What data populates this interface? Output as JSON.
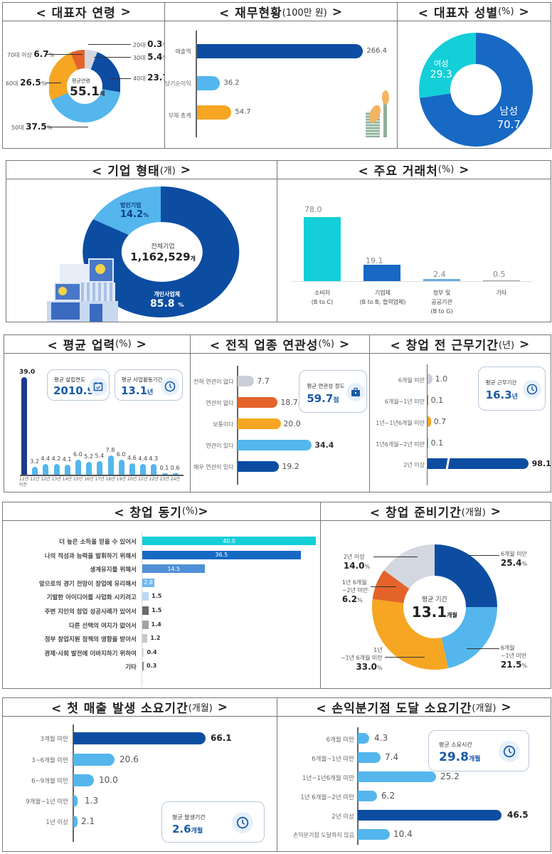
{
  "panels": {
    "age": {
      "title": "< 대표자 연령",
      "title_end": ">",
      "center_label": "평균연령",
      "center_value": "55.1",
      "center_unit": "세",
      "segments": [
        {
          "label": "20대",
          "value": "0.3",
          "unit": "%",
          "color": "#d7dbe3"
        },
        {
          "label": "30대",
          "value": "5.4",
          "unit": "%",
          "color": "#d3d7e0"
        },
        {
          "label": "40대",
          "value": "23.7",
          "unit": "%",
          "color": "#0c4da2"
        },
        {
          "label": "50대",
          "value": "37.5",
          "unit": "%",
          "color": "#54b6ec"
        },
        {
          "label": "60대",
          "value": "26.5",
          "unit": "%",
          "color": "#f6a623"
        },
        {
          "label": "70대 이상",
          "value": "6.7",
          "unit": "%",
          "color": "#e3632b"
        }
      ]
    },
    "finance": {
      "title": "< 재무현황",
      "unit": "(100만 원)",
      "title_end": ">",
      "bars": [
        {
          "label": "매출액",
          "value": "266.4",
          "color": "#0c4da2"
        },
        {
          "label": "당기순이익",
          "value": "36.2",
          "color": "#54b6ec"
        },
        {
          "label": "부채 총계",
          "value": "54.7",
          "color": "#f6a623"
        }
      ]
    },
    "gender": {
      "title": "< 대표자 성별",
      "unit": "(%)",
      "title_end": ">",
      "segments": [
        {
          "label": "여성",
          "value": "29.3",
          "color": "#14cfd8"
        },
        {
          "label": "남성",
          "value": "70.7",
          "color": "#1769c4"
        }
      ]
    },
    "company_type": {
      "title": "< 기업 형태",
      "unit": "(개)",
      "title_end": ">",
      "center_label": "전체기업",
      "center_value": "1,162,529",
      "center_unit": "개",
      "segments": [
        {
          "label": "법인기업",
          "value": "14.2",
          "unit": "%",
          "color": "#54b6ec"
        },
        {
          "label": "개인사업체",
          "value": "85.8",
          "unit": "%",
          "color": "#0c4da2"
        }
      ]
    },
    "customers": {
      "title": "< 주요 거래처",
      "unit": "(%)",
      "title_end": ">",
      "bars": [
        {
          "label1": "소비자",
          "label2": "(B to C)",
          "label3": "",
          "value": "78.0",
          "color": "#14cfd8"
        },
        {
          "label1": "기업체",
          "label2": "(B to B, 협력업체)",
          "label3": "",
          "value": "19.1",
          "color": "#1769c4"
        },
        {
          "label1": "정부 및",
          "label2": "공공기관",
          "label3": "(B to G)",
          "value": "2.4",
          "color": "#6aaee0"
        },
        {
          "label1": "기타",
          "label2": "",
          "label3": "",
          "value": "0.5",
          "color": "#9a9a9a"
        }
      ]
    },
    "business_years": {
      "title": "< 평균 업력",
      "unit": "(%)",
      "title_end": ">",
      "card1": {
        "label": "평균 설립연도",
        "value": "2010.9",
        "unit": ""
      },
      "card2": {
        "label": "평균 사업활동기간",
        "value": "13.1",
        "unit": "년"
      }
    },
    "relevance": {
      "title": "< 전직 업종 연관성",
      "unit": "(%)",
      "title_end": ">",
      "card": {
        "label": "평균 연관성 정도",
        "value": "59.7",
        "unit": "점"
      },
      "bars": [
        {
          "label": "전혀 연관이 없다",
          "value": "7.7",
          "color": "#c9ced8"
        },
        {
          "label": "연관이 없다",
          "value": "18.7",
          "color": "#e3632b"
        },
        {
          "label": "보통이다",
          "value": "20.0",
          "color": "#f6a623"
        },
        {
          "label": "연관이 있다",
          "value": "34.4",
          "color": "#54b6ec"
        },
        {
          "label": "매우 연관이 있다",
          "value": "19.2",
          "color": "#0c4da2"
        }
      ]
    },
    "prior_work": {
      "title": "< 창업 전 근무기간",
      "unit": "(년)",
      "title_end": ">",
      "card": {
        "label": "평균 근무기간",
        "value": "16.3",
        "unit": "년"
      },
      "bars": [
        {
          "label": "6개월 미만",
          "value": "1.0",
          "color": "#c9ced8"
        },
        {
          "label": "6개월~1년 미만",
          "value": "0.1",
          "color": "#e3632b"
        },
        {
          "label": "1년~1년6개월 미만",
          "value": "0.7",
          "color": "#f6a623"
        },
        {
          "label": "1년6개월~2년 미만",
          "value": "0.1",
          "color": "#54b6ec"
        },
        {
          "label": "2년 이상",
          "value": "98.1",
          "color": "#0c4da2"
        }
      ]
    },
    "motivation": {
      "title": "< 창업 동기",
      "unit": "(%)",
      "title_end": ">"
    },
    "prep_period": {
      "title": "< 창업 준비기간",
      "unit": "(개월)",
      "title_end": ">",
      "center_label": "평균 기간",
      "center_value": "13.1",
      "center_unit": "개월",
      "segments": [
        {
          "label": "6개월 미만",
          "label2": "",
          "value": "25.4",
          "unit": "%",
          "color": "#0c4da2"
        },
        {
          "label": "6개월",
          "label2": "~1년 미만",
          "value": "21.5",
          "unit": "%",
          "color": "#54b6ec"
        },
        {
          "label": "1년",
          "label2": "~1년 6개월 미만",
          "value": "33.0",
          "unit": "%",
          "color": "#f6a623"
        },
        {
          "label": "1년 6개월",
          "label2": "~2년 미만",
          "value": "6.2",
          "unit": "%",
          "color": "#e3632b"
        },
        {
          "label": "2년 이상",
          "label2": "",
          "value": "14.0",
          "unit": "%",
          "color": "#d3d7e0"
        }
      ]
    },
    "first_sales": {
      "title": "< 첫 매출 발생 소요기간",
      "unit": "(개월)",
      "title_end": ">",
      "card": {
        "label": "평균 발생기간",
        "value": "2.6",
        "unit": "개월"
      },
      "bars": [
        {
          "label": "3개월 미만",
          "value": "66.1",
          "color": "#0c4da2"
        },
        {
          "label": "3~6개월 미만",
          "value": "20.6",
          "color": "#54b6ec"
        },
        {
          "label": "6~9개월 미만",
          "value": "10.0",
          "color": "#54b6ec"
        },
        {
          "label": "9개월~1년 미만",
          "value": "1.3",
          "color": "#54b6ec"
        },
        {
          "label": "1년 이상",
          "value": "2.1",
          "color": "#54b6ec"
        }
      ]
    },
    "breakeven": {
      "title": "< 손익분기점 도달 소요기간",
      "unit": "(개월)",
      "title_end": ">",
      "card": {
        "label": "평균 소요시간",
        "value": "29.8",
        "unit": "개월"
      },
      "bars": [
        {
          "label": "6개월 미만",
          "value": "4.3",
          "color": "#54b6ec"
        },
        {
          "label": "6개월~1년 미만",
          "value": "7.4",
          "color": "#54b6ec"
        },
        {
          "label": "1년~1년6개월 미만",
          "value": "25.2",
          "color": "#54b6ec"
        },
        {
          "label": "1년 6개월~2년 미만",
          "value": "6.2",
          "color": "#54b6ec"
        },
        {
          "label": "2년 이상",
          "value": "46.5",
          "color": "#0c4da2"
        },
        {
          "label": "손익분기점 도달하지 않음",
          "value": "10.4",
          "color": "#54b6ec"
        }
      ]
    }
  },
  "chart_data": [
    {
      "type": "pie",
      "title": "대표자 연령",
      "categories": [
        "20대",
        "30대",
        "40대",
        "50대",
        "60대",
        "70대 이상"
      ],
      "values": [
        0.3,
        5.4,
        23.7,
        37.5,
        26.5,
        6.7
      ],
      "annotation": "평균연령 55.1세"
    },
    {
      "type": "bar",
      "title": "재무현황 (100만 원)",
      "orientation": "horizontal",
      "categories": [
        "매출액",
        "당기순이익",
        "부채 총계"
      ],
      "values": [
        266.4,
        36.2,
        54.7
      ]
    },
    {
      "type": "pie",
      "title": "대표자 성별 (%)",
      "categories": [
        "여성",
        "남성"
      ],
      "values": [
        29.3,
        70.7
      ]
    },
    {
      "type": "pie",
      "title": "기업 형태 (개)",
      "categories": [
        "법인기업",
        "개인사업체"
      ],
      "values": [
        14.2,
        85.8
      ],
      "annotation": "전체기업 1,162,529개"
    },
    {
      "type": "bar",
      "title": "주요 거래처 (%)",
      "categories": [
        "소비자 (B to C)",
        "기업체 (B to B, 협력업체)",
        "정부 및 공공기관 (B to G)",
        "기타"
      ],
      "values": [
        78.0,
        19.1,
        2.4,
        0.5
      ]
    },
    {
      "type": "bar",
      "title": "평균 업력 (%)",
      "categories": [
        "11년 이전",
        "11년",
        "12년",
        "13년",
        "14년",
        "15년",
        "16년",
        "17년",
        "18년",
        "19년",
        "20년",
        "21년",
        "22년",
        "23년",
        "24년"
      ],
      "values": [
        39.0,
        3.2,
        4.4,
        4.2,
        4.1,
        6.0,
        5.2,
        5.4,
        7.8,
        6.0,
        4.6,
        4.4,
        4.3,
        0.1,
        0.6
      ],
      "annotations": [
        "평균 설립연도 2010.9",
        "평균 사업활동기간 13.1년"
      ]
    },
    {
      "type": "bar",
      "title": "전직 업종 연관성 (%)",
      "orientation": "horizontal",
      "categories": [
        "전혀 연관이 없다",
        "연관이 없다",
        "보통이다",
        "연관이 있다",
        "매우 연관이 있다"
      ],
      "values": [
        7.7,
        18.7,
        20.0,
        34.4,
        19.2
      ],
      "annotation": "평균 연관성 정도 59.7점"
    },
    {
      "type": "bar",
      "title": "창업 전 근무기간 (년)",
      "orientation": "horizontal",
      "categories": [
        "6개월 미만",
        "6개월~1년 미만",
        "1년~1년6개월 미만",
        "1년6개월~2년 미만",
        "2년 이상"
      ],
      "values": [
        1.0,
        0.1,
        0.7,
        0.1,
        98.1
      ],
      "annotation": "평균 근무기간 16.3년"
    },
    {
      "type": "bar",
      "title": "창업 동기 (%)",
      "orientation": "horizontal",
      "categories": [
        "더 높은 소득을 얻을 수 있어서",
        "나의 적성과 능력을 발휘하기 위해서",
        "생계유지를 위해서",
        "앞으로의 경기 전망이 창업에 유리해서",
        "기발한 아이디어를 사업화 시키려고",
        "주변 지인의 창업 성공사례가 있어서",
        "다른 선택의 여지가 없어서",
        "정부 창업지원 정책의 영향을 받아서",
        "경제·사회 발전에 이바지하기 위하여",
        "기타"
      ],
      "values": [
        40.0,
        36.5,
        14.5,
        2.8,
        1.5,
        1.5,
        1.4,
        1.2,
        0.4,
        0.3
      ]
    },
    {
      "type": "pie",
      "title": "창업 준비기간 (개월)",
      "categories": [
        "6개월 미만",
        "6개월~1년 미만",
        "1년~1년 6개월 미만",
        "1년 6개월~2년 미만",
        "2년 이상"
      ],
      "values": [
        25.4,
        21.5,
        33.0,
        6.2,
        14.0
      ],
      "annotation": "평균 기간 13.1개월"
    },
    {
      "type": "bar",
      "title": "첫 매출 발생 소요기간 (개월)",
      "orientation": "horizontal",
      "categories": [
        "3개월 미만",
        "3~6개월 미만",
        "6~9개월 미만",
        "9개월~1년 미만",
        "1년 이상"
      ],
      "values": [
        66.1,
        20.6,
        10.0,
        1.3,
        2.1
      ],
      "annotation": "평균 발생기간 2.6개월"
    },
    {
      "type": "bar",
      "title": "손익분기점 도달 소요기간 (개월)",
      "orientation": "horizontal",
      "categories": [
        "6개월 미만",
        "6개월~1년 미만",
        "1년~1년6개월 미만",
        "1년 6개월~2년 미만",
        "2년 이상",
        "손익분기점 도달하지 않음"
      ],
      "values": [
        4.3,
        7.4,
        25.2,
        6.2,
        46.5,
        10.4
      ],
      "annotation": "평균 소요시간 29.8개월"
    }
  ],
  "years_bars": [
    {
      "label": "11년",
      "label2": "이전",
      "value": "39.0",
      "h": 39.0
    },
    {
      "label": "11년",
      "value": "3.2",
      "h": 3.2
    },
    {
      "label": "12년",
      "value": "4.4",
      "h": 4.4
    },
    {
      "label": "13년",
      "value": "4.2",
      "h": 4.2
    },
    {
      "label": "14년",
      "value": "4.1",
      "h": 4.1
    },
    {
      "label": "15년",
      "value": "6.0",
      "h": 6.0
    },
    {
      "label": "16년",
      "value": "5.2",
      "h": 5.2
    },
    {
      "label": "17년",
      "value": "5.4",
      "h": 5.4
    },
    {
      "label": "18년",
      "value": "7.8",
      "h": 7.8
    },
    {
      "label": "19년",
      "value": "6.0",
      "h": 6.0
    },
    {
      "label": "20년",
      "value": "4.6",
      "h": 4.6
    },
    {
      "label": "21년",
      "value": "4.4",
      "h": 4.4
    },
    {
      "label": "22년",
      "value": "4.3",
      "h": 4.3
    },
    {
      "label": "23년",
      "value": "0.1",
      "h": 0.1
    },
    {
      "label": "24년",
      "value": "0.6",
      "h": 0.6
    }
  ],
  "motivation_bars": [
    {
      "label": "더 높은 소득을 얻을 수 있어서",
      "value": "40.0",
      "color": "#14cfd8",
      "inside": true
    },
    {
      "label": "나의 적성과 능력을 발휘하기 위해서",
      "value": "36.5",
      "color": "#1769c4",
      "inside": true
    },
    {
      "label": "생계유지를 위해서",
      "value": "14.5",
      "color": "#4f8fd6",
      "inside": true
    },
    {
      "label": "앞으로의 경기 전망이 창업에 유리해서",
      "value": "2.8",
      "color": "#6fb6ef",
      "inside": true
    },
    {
      "label": "기발한 아이디어를 사업화 시키려고",
      "value": "1.5",
      "color": "#b9d8f3",
      "inside": false
    },
    {
      "label": "주변 지인의 창업 성공사례가 있어서",
      "value": "1.5",
      "color": "#6b6b6b",
      "inside": false
    },
    {
      "label": "다른 선택의 여지가 없어서",
      "value": "1.4",
      "color": "#a3a3a3",
      "inside": false
    },
    {
      "label": "정부 창업지원 정책의 영향을 받아서",
      "value": "1.2",
      "color": "#c8c8c8",
      "inside": false
    },
    {
      "label": "경제·사회 발전에 이바지하기 위하여",
      "value": "0.4",
      "color": "#d8d8d8",
      "inside": false
    },
    {
      "label": "기타",
      "value": "0.3",
      "color": "#888888",
      "inside": false
    }
  ]
}
